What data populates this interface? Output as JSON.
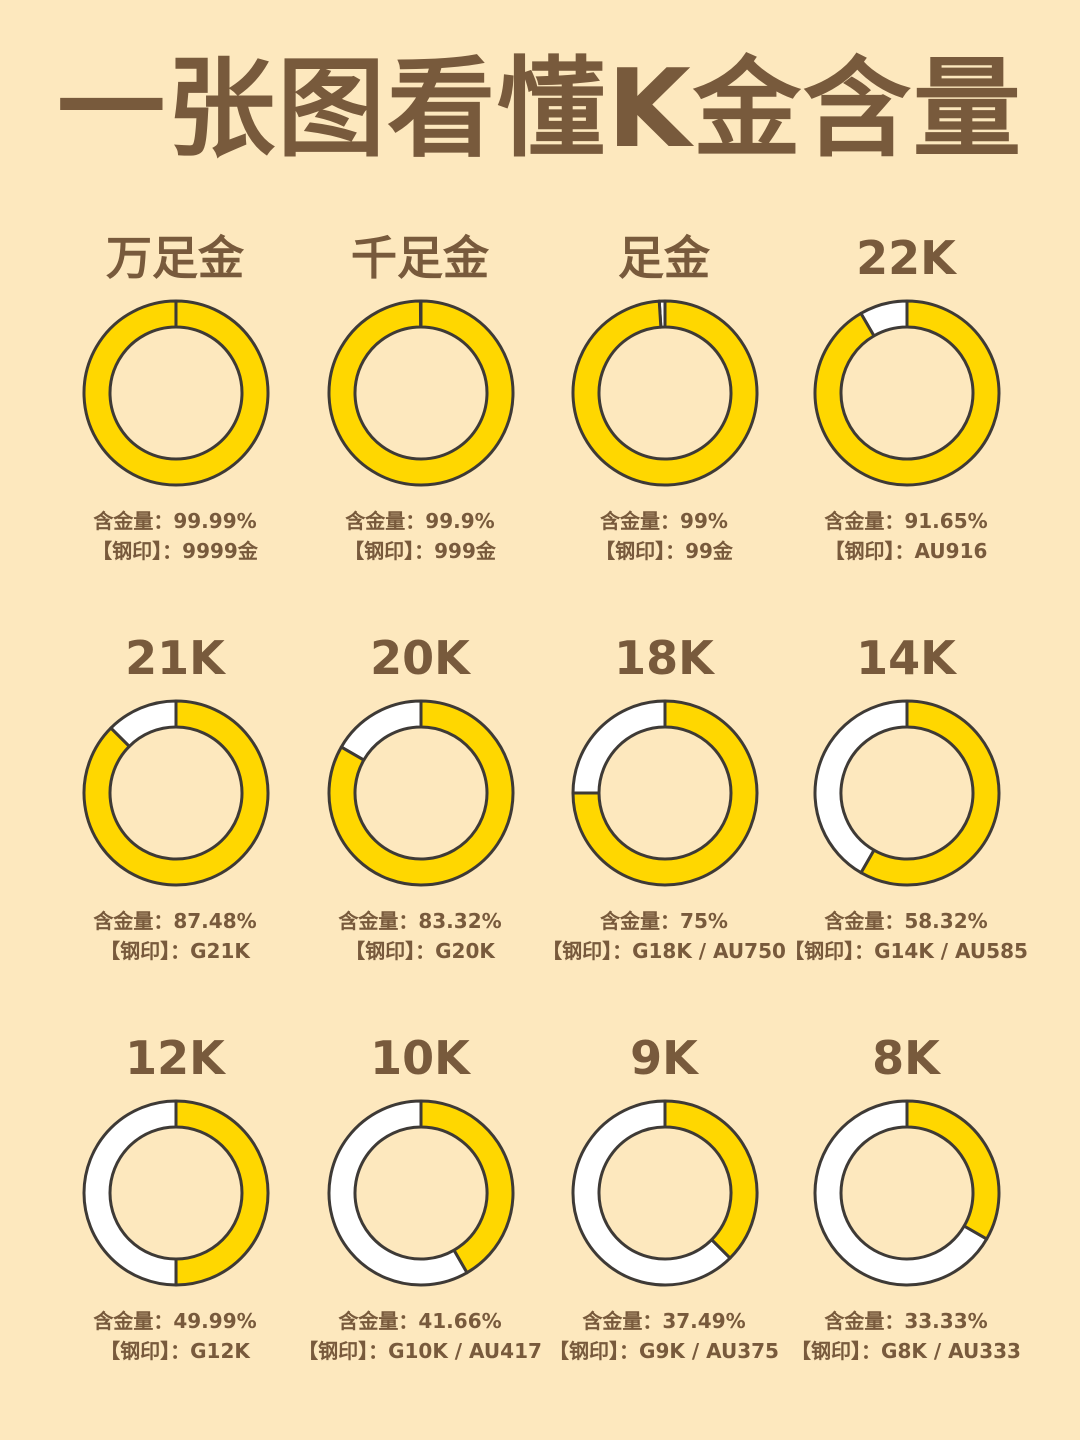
{
  "title": "一张图看懂K金含量",
  "colors": {
    "background": "#FDE8BE",
    "gold": "#FFD700",
    "rest": "#FFFFFF",
    "outline": "#3E3A36",
    "text": "#785A3C"
  },
  "chart_data": [
    {
      "type": "pie",
      "name": "万足金",
      "content_label": "含金量：99.99%",
      "stamp_label": "【钢印】：9999金",
      "values": [
        99.99,
        0.01
      ],
      "categories": [
        "含金量",
        ""
      ]
    },
    {
      "type": "pie",
      "name": "千足金",
      "content_label": "含金量：99.9%",
      "stamp_label": "【钢印】：999金",
      "values": [
        99.9,
        0.1
      ],
      "categories": [
        "含金量",
        ""
      ]
    },
    {
      "type": "pie",
      "name": "足金",
      "content_label": "含金量：99%",
      "stamp_label": "【钢印】：99金",
      "values": [
        99,
        1
      ],
      "categories": [
        "含金量",
        ""
      ]
    },
    {
      "type": "pie",
      "name": "22K",
      "content_label": "含金量：91.65%",
      "stamp_label": "【钢印】：AU916",
      "values": [
        91.65,
        8.35
      ],
      "categories": [
        "含金量",
        ""
      ]
    },
    {
      "type": "pie",
      "name": "21K",
      "content_label": "含金量：87.48%",
      "stamp_label": "【钢印】：G21K",
      "values": [
        87.48,
        12.52
      ],
      "categories": [
        "含金量",
        ""
      ]
    },
    {
      "type": "pie",
      "name": "20K",
      "content_label": "含金量：83.32%",
      "stamp_label": "【钢印】：G20K",
      "values": [
        83.32,
        16.68
      ],
      "categories": [
        "含金量",
        ""
      ]
    },
    {
      "type": "pie",
      "name": "18K",
      "content_label": "含金量：75%",
      "stamp_label": "【钢印】：G18K / AU750",
      "values": [
        75,
        25
      ],
      "categories": [
        "含金量",
        ""
      ]
    },
    {
      "type": "pie",
      "name": "14K",
      "content_label": "含金量：58.32%",
      "stamp_label": "【钢印】：G14K / AU585",
      "values": [
        58.32,
        41.68
      ],
      "categories": [
        "含金量",
        ""
      ]
    },
    {
      "type": "pie",
      "name": "12K",
      "content_label": "含金量：49.99%",
      "stamp_label": "【钢印】：G12K",
      "values": [
        49.99,
        50.01
      ],
      "categories": [
        "含金量",
        ""
      ]
    },
    {
      "type": "pie",
      "name": "10K",
      "content_label": "含金量：41.66%",
      "stamp_label": "【钢印】：G10K / AU417",
      "values": [
        41.66,
        58.34
      ],
      "categories": [
        "含金量",
        ""
      ]
    },
    {
      "type": "pie",
      "name": "9K",
      "content_label": "含金量：37.49%",
      "stamp_label": "【钢印】：G9K / AU375",
      "values": [
        37.49,
        62.51
      ],
      "categories": [
        "含金量",
        ""
      ]
    },
    {
      "type": "pie",
      "name": "8K",
      "content_label": "含金量：33.33%",
      "stamp_label": "【钢印】：G8K / AU333",
      "values": [
        33.33,
        66.67
      ],
      "categories": [
        "含金量",
        ""
      ]
    }
  ]
}
